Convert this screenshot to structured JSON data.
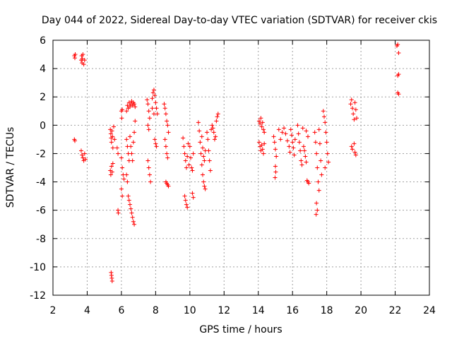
{
  "chart_data": {
    "type": "scatter",
    "title": "Day 044 of 2022, Sidereal Day-to-day VTEC variation (SDTVAR) for receiver ckis",
    "xlabel": "GPS time / hours",
    "ylabel": "SDTVAR / TECUs",
    "xlim": [
      2,
      24
    ],
    "ylim": [
      -12,
      6
    ],
    "xticks": [
      2,
      4,
      6,
      8,
      10,
      12,
      14,
      16,
      18,
      20,
      22,
      24
    ],
    "yticks": [
      -12,
      -10,
      -8,
      -6,
      -4,
      -2,
      0,
      2,
      4,
      6
    ],
    "grid": true,
    "marker": "+",
    "color": "#ff0000",
    "series": [
      {
        "name": "SDTVAR",
        "points": [
          [
            3.25,
            4.9
          ],
          [
            3.28,
            4.75
          ],
          [
            3.3,
            5.0
          ],
          [
            3.25,
            -1.0
          ],
          [
            3.28,
            -1.1
          ],
          [
            3.65,
            4.6
          ],
          [
            3.68,
            4.9
          ],
          [
            3.7,
            4.4
          ],
          [
            3.72,
            4.7
          ],
          [
            3.75,
            5.0
          ],
          [
            3.8,
            4.3
          ],
          [
            3.85,
            4.6
          ],
          [
            3.65,
            -1.8
          ],
          [
            3.7,
            -2.1
          ],
          [
            3.75,
            -2.3
          ],
          [
            3.8,
            -2.5
          ],
          [
            3.85,
            -2.0
          ],
          [
            3.9,
            -2.4
          ],
          [
            5.35,
            -0.3
          ],
          [
            5.38,
            -0.6
          ],
          [
            5.4,
            -0.9
          ],
          [
            5.42,
            -1.2
          ],
          [
            5.45,
            -0.4
          ],
          [
            5.48,
            -0.8
          ],
          [
            5.5,
            -1.6
          ],
          [
            5.55,
            -0.1
          ],
          [
            5.6,
            -1.0
          ],
          [
            5.35,
            -3.2
          ],
          [
            5.38,
            -3.5
          ],
          [
            5.42,
            -2.9
          ],
          [
            5.46,
            -3.3
          ],
          [
            5.5,
            -2.7
          ],
          [
            5.4,
            -10.4
          ],
          [
            5.42,
            -10.6
          ],
          [
            5.44,
            -10.8
          ],
          [
            5.46,
            -11.0
          ],
          [
            5.75,
            -1.6
          ],
          [
            5.8,
            -2.0
          ],
          [
            5.8,
            -6.0
          ],
          [
            5.82,
            -6.2
          ],
          [
            6.0,
            1.0
          ],
          [
            6.02,
            0.5
          ],
          [
            6.05,
            1.1
          ],
          [
            6.0,
            -2.3
          ],
          [
            6.05,
            -3.0
          ],
          [
            6.1,
            -3.5
          ],
          [
            6.15,
            -3.8
          ],
          [
            6.0,
            -4.5
          ],
          [
            6.05,
            -5.0
          ],
          [
            6.3,
            -1.0
          ],
          [
            6.35,
            -1.5
          ],
          [
            6.4,
            -2.0
          ],
          [
            6.45,
            -2.5
          ],
          [
            6.3,
            -3.5
          ],
          [
            6.35,
            -4.0
          ],
          [
            6.4,
            -5.0
          ],
          [
            6.45,
            -5.3
          ],
          [
            6.5,
            -5.6
          ],
          [
            6.55,
            -5.9
          ],
          [
            6.6,
            -6.2
          ],
          [
            6.65,
            -6.5
          ],
          [
            6.7,
            -6.8
          ],
          [
            6.75,
            -7.0
          ],
          [
            6.3,
            1.0
          ],
          [
            6.35,
            1.4
          ],
          [
            6.4,
            1.2
          ],
          [
            6.45,
            1.6
          ],
          [
            6.5,
            1.3
          ],
          [
            6.55,
            1.5
          ],
          [
            6.6,
            1.7
          ],
          [
            6.65,
            1.4
          ],
          [
            6.7,
            1.6
          ],
          [
            6.75,
            1.5
          ],
          [
            6.8,
            1.3
          ],
          [
            6.5,
            -0.8
          ],
          [
            6.55,
            -1.5
          ],
          [
            6.6,
            -2.0
          ],
          [
            6.65,
            -2.5
          ],
          [
            6.7,
            -1.2
          ],
          [
            6.75,
            -0.5
          ],
          [
            6.8,
            0.3
          ],
          [
            7.5,
            1.8
          ],
          [
            7.55,
            1.5
          ],
          [
            7.6,
            1.0
          ],
          [
            7.65,
            0.5
          ],
          [
            7.55,
            0.0
          ],
          [
            7.6,
            -0.3
          ],
          [
            7.55,
            -2.5
          ],
          [
            7.6,
            -3.0
          ],
          [
            7.65,
            -3.5
          ],
          [
            7.7,
            -4.0
          ],
          [
            7.8,
            1.9
          ],
          [
            7.85,
            2.3
          ],
          [
            7.9,
            2.5
          ],
          [
            7.95,
            2.1
          ],
          [
            8.0,
            1.6
          ],
          [
            8.05,
            1.2
          ],
          [
            8.1,
            0.8
          ],
          [
            7.8,
            1.2
          ],
          [
            7.9,
            0.8
          ],
          [
            7.95,
            -1.0
          ],
          [
            8.0,
            -1.3
          ],
          [
            8.05,
            -1.5
          ],
          [
            8.5,
            1.5
          ],
          [
            8.55,
            1.2
          ],
          [
            8.6,
            0.8
          ],
          [
            8.65,
            0.3
          ],
          [
            8.7,
            0.0
          ],
          [
            8.75,
            -0.5
          ],
          [
            8.55,
            -1.0
          ],
          [
            8.6,
            -1.5
          ],
          [
            8.65,
            -2.0
          ],
          [
            8.7,
            -2.3
          ],
          [
            8.6,
            -4.0
          ],
          [
            8.65,
            -4.1
          ],
          [
            8.7,
            -4.2
          ],
          [
            8.75,
            -4.3
          ],
          [
            9.6,
            -0.9
          ],
          [
            9.65,
            -1.5
          ],
          [
            9.7,
            -2.0
          ],
          [
            9.75,
            -2.5
          ],
          [
            9.8,
            -3.0
          ],
          [
            9.85,
            -2.2
          ],
          [
            9.9,
            -1.3
          ],
          [
            9.95,
            -2.8
          ],
          [
            9.7,
            -5.0
          ],
          [
            9.75,
            -5.3
          ],
          [
            9.8,
            -5.6
          ],
          [
            9.85,
            -5.8
          ],
          [
            10.0,
            -1.5
          ],
          [
            10.05,
            -2.3
          ],
          [
            10.1,
            -3.0
          ],
          [
            10.15,
            -3.2
          ],
          [
            10.2,
            -2.0
          ],
          [
            10.15,
            -4.8
          ],
          [
            10.2,
            -5.1
          ],
          [
            10.5,
            0.2
          ],
          [
            10.55,
            -0.4
          ],
          [
            10.6,
            -1.2
          ],
          [
            10.65,
            -2.0
          ],
          [
            10.7,
            -2.8
          ],
          [
            10.75,
            -3.5
          ],
          [
            10.8,
            -4.0
          ],
          [
            10.85,
            -4.3
          ],
          [
            10.9,
            -4.5
          ],
          [
            10.7,
            -0.8
          ],
          [
            10.75,
            -1.6
          ],
          [
            10.8,
            -2.2
          ],
          [
            10.85,
            -2.5
          ],
          [
            10.9,
            -1.8
          ],
          [
            11.0,
            -0.5
          ],
          [
            11.05,
            -1.0
          ],
          [
            11.1,
            -1.8
          ],
          [
            11.15,
            -2.5
          ],
          [
            11.2,
            -3.2
          ],
          [
            11.25,
            -0.3
          ],
          [
            11.3,
            0.0
          ],
          [
            11.35,
            -0.2
          ],
          [
            11.4,
            -0.5
          ],
          [
            11.45,
            -1.0
          ],
          [
            11.5,
            -0.8
          ],
          [
            11.55,
            0.3
          ],
          [
            11.6,
            0.6
          ],
          [
            11.65,
            0.8
          ],
          [
            14.05,
            0.3
          ],
          [
            14.1,
            0.1
          ],
          [
            14.15,
            0.5
          ],
          [
            14.2,
            -0.1
          ],
          [
            14.25,
            0.2
          ],
          [
            14.3,
            -0.3
          ],
          [
            14.35,
            -0.5
          ],
          [
            14.05,
            -1.2
          ],
          [
            14.1,
            -1.5
          ],
          [
            14.15,
            -1.8
          ],
          [
            14.2,
            -1.4
          ],
          [
            14.25,
            -1.7
          ],
          [
            14.3,
            -2.0
          ],
          [
            14.35,
            -1.3
          ],
          [
            14.9,
            -0.8
          ],
          [
            14.95,
            -1.2
          ],
          [
            15.0,
            -1.7
          ],
          [
            15.05,
            -2.2
          ],
          [
            15.0,
            -2.9
          ],
          [
            15.02,
            -3.3
          ],
          [
            14.98,
            -3.7
          ],
          [
            15.2,
            -0.3
          ],
          [
            15.3,
            -1.0
          ],
          [
            15.4,
            -0.5
          ],
          [
            15.5,
            -0.2
          ],
          [
            15.6,
            -0.6
          ],
          [
            15.7,
            -1.1
          ],
          [
            15.8,
            -1.5
          ],
          [
            15.85,
            -1.9
          ],
          [
            15.9,
            -0.3
          ],
          [
            15.95,
            -0.7
          ],
          [
            16.0,
            -1.2
          ],
          [
            16.05,
            -1.6
          ],
          [
            16.1,
            -2.1
          ],
          [
            16.15,
            -1.0
          ],
          [
            16.3,
            0.0
          ],
          [
            16.35,
            -0.6
          ],
          [
            16.4,
            -1.2
          ],
          [
            16.45,
            -1.8
          ],
          [
            16.5,
            -2.5
          ],
          [
            16.55,
            -2.8
          ],
          [
            16.6,
            -0.2
          ],
          [
            16.65,
            -1.5
          ],
          [
            16.7,
            -1.8
          ],
          [
            16.75,
            -2.2
          ],
          [
            16.8,
            -2.6
          ],
          [
            16.85,
            -3.9
          ],
          [
            16.9,
            -4.0
          ],
          [
            16.95,
            -4.1
          ],
          [
            16.8,
            -0.4
          ],
          [
            16.9,
            -0.8
          ],
          [
            17.3,
            -0.5
          ],
          [
            17.35,
            -1.2
          ],
          [
            17.4,
            -2.0
          ],
          [
            17.45,
            -3.0
          ],
          [
            17.5,
            -4.0
          ],
          [
            17.55,
            -4.6
          ],
          [
            17.4,
            -5.5
          ],
          [
            17.45,
            -6.0
          ],
          [
            17.38,
            -6.3
          ],
          [
            17.55,
            -0.3
          ],
          [
            17.6,
            -1.3
          ],
          [
            17.65,
            -2.5
          ],
          [
            17.7,
            -3.5
          ],
          [
            17.8,
            1.0
          ],
          [
            17.85,
            0.6
          ],
          [
            17.9,
            0.2
          ],
          [
            17.95,
            -0.5
          ],
          [
            18.0,
            -1.2
          ],
          [
            18.05,
            -2.0
          ],
          [
            18.1,
            -2.6
          ],
          [
            17.9,
            -3.0
          ],
          [
            19.4,
            1.5
          ],
          [
            19.45,
            1.8
          ],
          [
            19.5,
            1.2
          ],
          [
            19.55,
            0.8
          ],
          [
            19.6,
            0.4
          ],
          [
            19.65,
            1.6
          ],
          [
            19.7,
            1.1
          ],
          [
            19.75,
            0.5
          ],
          [
            19.45,
            -1.5
          ],
          [
            19.5,
            -1.7
          ],
          [
            19.6,
            -1.3
          ],
          [
            19.65,
            -1.9
          ],
          [
            19.7,
            -2.1
          ],
          [
            22.1,
            5.6
          ],
          [
            22.15,
            5.7
          ],
          [
            22.2,
            5.1
          ],
          [
            22.15,
            3.5
          ],
          [
            22.2,
            3.6
          ],
          [
            22.15,
            2.3
          ],
          [
            22.2,
            2.2
          ]
        ]
      }
    ]
  }
}
